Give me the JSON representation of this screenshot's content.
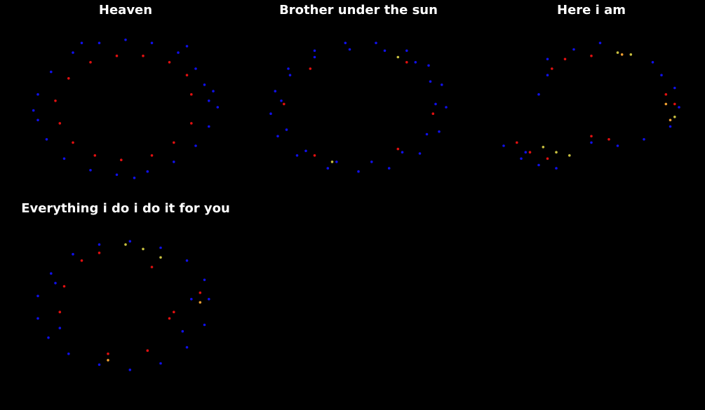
{
  "colors": {
    "background": "#000000",
    "low": "#1010e8",
    "mid": "#e01010",
    "high": "#c8c040",
    "peak": "#f0a030"
  },
  "chart_data": [
    {
      "type": "scatter",
      "title": "Heaven",
      "xlim": [
        -1.2,
        1.2
      ],
      "ylim": [
        -1.2,
        1.2
      ],
      "grid": false,
      "series": [
        {
          "color": "low",
          "points": [
            [
              0.95,
              0.1
            ],
            [
              0.9,
              0.35
            ],
            [
              0.8,
              0.6
            ],
            [
              0.6,
              0.85
            ],
            [
              0.3,
              1.0
            ],
            [
              0.0,
              1.05
            ],
            [
              -0.3,
              1.0
            ],
            [
              -0.6,
              0.85
            ],
            [
              -0.85,
              0.55
            ],
            [
              -1.0,
              0.2
            ],
            [
              -1.0,
              -0.2
            ],
            [
              -0.9,
              -0.5
            ],
            [
              -0.7,
              -0.8
            ],
            [
              -0.4,
              -0.98
            ],
            [
              -0.1,
              -1.05
            ],
            [
              0.25,
              -1.0
            ],
            [
              0.55,
              -0.85
            ],
            [
              0.8,
              -0.6
            ],
            [
              0.95,
              -0.3
            ],
            [
              1.05,
              0.0
            ],
            [
              1.0,
              0.25
            ],
            [
              0.7,
              0.95
            ],
            [
              -0.5,
              1.0
            ],
            [
              -1.05,
              -0.05
            ],
            [
              0.1,
              -1.1
            ]
          ]
        },
        {
          "color": "mid",
          "points": [
            [
              0.75,
              0.2
            ],
            [
              0.7,
              0.5
            ],
            [
              0.5,
              0.7
            ],
            [
              0.2,
              0.8
            ],
            [
              -0.1,
              0.8
            ],
            [
              -0.4,
              0.7
            ],
            [
              -0.65,
              0.45
            ],
            [
              -0.8,
              0.1
            ],
            [
              -0.75,
              -0.25
            ],
            [
              -0.6,
              -0.55
            ],
            [
              -0.35,
              -0.75
            ],
            [
              -0.05,
              -0.82
            ],
            [
              0.3,
              -0.75
            ],
            [
              0.55,
              -0.55
            ],
            [
              0.75,
              -0.25
            ]
          ]
        }
      ]
    },
    {
      "type": "scatter",
      "title": "Brother under the sun",
      "xlim": [
        -1.2,
        1.2
      ],
      "ylim": [
        -1.2,
        1.2
      ],
      "grid": false,
      "series": [
        {
          "color": "low",
          "points": [
            [
              1.0,
              0.0
            ],
            [
              0.95,
              0.35
            ],
            [
              0.8,
              0.65
            ],
            [
              0.55,
              0.88
            ],
            [
              0.2,
              1.0
            ],
            [
              -0.15,
              1.0
            ],
            [
              -0.5,
              0.88
            ],
            [
              -0.8,
              0.6
            ],
            [
              -0.95,
              0.25
            ],
            [
              -1.0,
              -0.1
            ],
            [
              -0.92,
              -0.45
            ],
            [
              -0.7,
              -0.75
            ],
            [
              -0.35,
              -0.95
            ],
            [
              0.0,
              -1.0
            ],
            [
              0.35,
              -0.95
            ],
            [
              0.7,
              -0.72
            ],
            [
              0.92,
              -0.38
            ],
            [
              0.88,
              0.05
            ],
            [
              0.82,
              0.4
            ],
            [
              0.65,
              0.7
            ],
            [
              0.3,
              0.88
            ],
            [
              -0.1,
              0.9
            ],
            [
              -0.5,
              0.78
            ],
            [
              -0.78,
              0.5
            ],
            [
              -0.88,
              0.1
            ],
            [
              -0.82,
              -0.35
            ],
            [
              -0.6,
              -0.68
            ],
            [
              -0.25,
              -0.85
            ],
            [
              0.15,
              -0.85
            ],
            [
              0.5,
              -0.7
            ],
            [
              0.78,
              -0.42
            ]
          ]
        },
        {
          "color": "mid",
          "points": [
            [
              0.55,
              0.7
            ],
            [
              0.85,
              -0.1
            ],
            [
              -0.85,
              0.05
            ],
            [
              -0.5,
              -0.75
            ],
            [
              0.45,
              -0.65
            ],
            [
              -0.55,
              0.6
            ]
          ]
        },
        {
          "color": "high",
          "points": [
            [
              0.45,
              0.78
            ],
            [
              -0.3,
              -0.85
            ]
          ]
        }
      ]
    },
    {
      "type": "scatter",
      "title": "Here i am",
      "xlim": [
        -1.2,
        1.2
      ],
      "ylim": [
        -1.2,
        1.2
      ],
      "grid": false,
      "series": [
        {
          "color": "low",
          "points": [
            [
              0.8,
              0.5
            ],
            [
              0.95,
              0.3
            ],
            [
              1.0,
              0.0
            ],
            [
              0.9,
              -0.3
            ],
            [
              0.6,
              -0.5
            ],
            [
              0.3,
              -0.6
            ],
            [
              0.0,
              -0.55
            ],
            [
              -0.5,
              0.5
            ],
            [
              -0.6,
              0.2
            ],
            [
              -0.5,
              0.75
            ],
            [
              -0.2,
              0.9
            ],
            [
              0.1,
              1.0
            ],
            [
              -1.0,
              -0.6
            ],
            [
              -0.8,
              -0.8
            ],
            [
              -0.6,
              -0.9
            ],
            [
              -0.4,
              -0.95
            ],
            [
              -0.75,
              -0.7
            ],
            [
              0.7,
              0.7
            ]
          ]
        },
        {
          "color": "mid",
          "points": [
            [
              -0.3,
              0.75
            ],
            [
              -0.45,
              0.6
            ],
            [
              0.0,
              0.8
            ],
            [
              0.85,
              0.2
            ],
            [
              0.95,
              0.05
            ],
            [
              0.2,
              -0.5
            ],
            [
              0.0,
              -0.45
            ],
            [
              -0.85,
              -0.55
            ],
            [
              -0.7,
              -0.7
            ],
            [
              -0.5,
              -0.8
            ]
          ]
        },
        {
          "color": "high",
          "points": [
            [
              0.3,
              0.85
            ],
            [
              0.45,
              0.82
            ],
            [
              -0.55,
              -0.62
            ],
            [
              -0.4,
              -0.7
            ],
            [
              -0.25,
              -0.75
            ],
            [
              0.95,
              -0.15
            ]
          ]
        },
        {
          "color": "peak",
          "points": [
            [
              0.35,
              0.82
            ],
            [
              0.85,
              0.05
            ],
            [
              0.9,
              -0.2
            ]
          ]
        }
      ]
    },
    {
      "type": "scatter",
      "title": "Everything i do i do it for you",
      "xlim": [
        -1.2,
        1.2
      ],
      "ylim": [
        -1.2,
        1.2
      ],
      "grid": false,
      "series": [
        {
          "color": "low",
          "points": [
            [
              0.95,
              0.1
            ],
            [
              0.9,
              0.4
            ],
            [
              0.7,
              0.7
            ],
            [
              0.4,
              0.9
            ],
            [
              0.05,
              1.0
            ],
            [
              -0.3,
              0.95
            ],
            [
              -0.6,
              0.8
            ],
            [
              -0.85,
              0.5
            ],
            [
              -1.0,
              0.15
            ],
            [
              -1.0,
              -0.2
            ],
            [
              -0.88,
              -0.5
            ],
            [
              -0.65,
              -0.75
            ],
            [
              -0.3,
              -0.92
            ],
            [
              0.05,
              -1.0
            ],
            [
              0.4,
              -0.9
            ],
            [
              0.7,
              -0.65
            ],
            [
              0.9,
              -0.3
            ],
            [
              0.75,
              0.1
            ],
            [
              0.65,
              -0.4
            ],
            [
              -0.75,
              -0.35
            ],
            [
              -0.8,
              0.35
            ]
          ]
        },
        {
          "color": "mid",
          "points": [
            [
              -0.5,
              0.7
            ],
            [
              -0.7,
              0.3
            ],
            [
              -0.75,
              -0.1
            ],
            [
              0.5,
              -0.2
            ],
            [
              0.55,
              -0.1
            ],
            [
              0.25,
              -0.7
            ],
            [
              -0.2,
              -0.75
            ],
            [
              0.3,
              0.6
            ],
            [
              0.85,
              0.2
            ],
            [
              -0.3,
              0.82
            ]
          ]
        },
        {
          "color": "high",
          "points": [
            [
              0.0,
              0.95
            ],
            [
              0.2,
              0.88
            ],
            [
              0.4,
              0.75
            ]
          ]
        },
        {
          "color": "peak",
          "points": [
            [
              -0.2,
              -0.85
            ],
            [
              0.85,
              0.05
            ]
          ]
        }
      ]
    }
  ]
}
